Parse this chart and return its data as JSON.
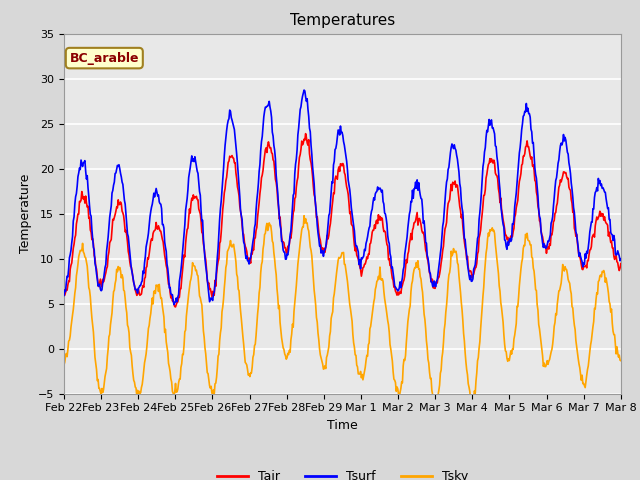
{
  "title": "Temperatures",
  "xlabel": "Time",
  "ylabel": "Temperature",
  "ylim": [
    -5,
    35
  ],
  "yticks": [
    -5,
    0,
    5,
    10,
    15,
    20,
    25,
    30,
    35
  ],
  "x_tick_labels": [
    "Feb 22",
    "Feb 23",
    "Feb 24",
    "Feb 25",
    "Feb 26",
    "Feb 27",
    "Feb 28",
    "Feb 29",
    "Mar 1",
    "Mar 2",
    "Mar 3",
    "Mar 4",
    "Mar 5",
    "Mar 6",
    "Mar 7",
    "Mar 8"
  ],
  "annotation_text": "BC_arable",
  "annotation_color": "#8B0000",
  "annotation_bg": "#FFFFCC",
  "annotation_edge": "#A08020",
  "line_colors": {
    "Tair": "#FF0000",
    "Tsurf": "#0000FF",
    "Tsky": "#FFA500"
  },
  "line_widths": {
    "Tair": 1.2,
    "Tsurf": 1.2,
    "Tsky": 1.2
  },
  "fig_bg_color": "#D8D8D8",
  "ax_bg_color": "#E8E8E8",
  "grid_color": "#FFFFFF",
  "title_fontsize": 11,
  "axis_fontsize": 9,
  "tick_fontsize": 8,
  "legend_fontsize": 9
}
